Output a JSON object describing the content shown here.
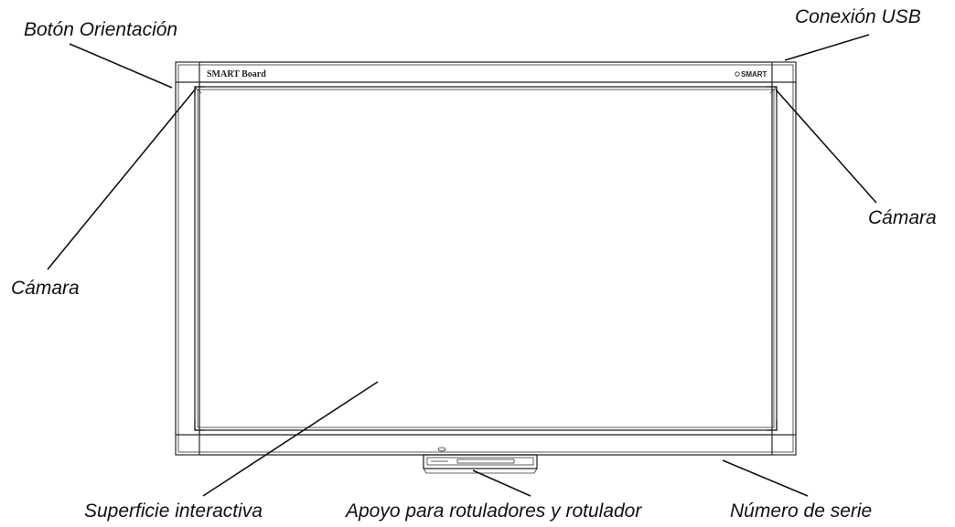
{
  "diagram": {
    "brand_left": "SMART Board",
    "brand_right": "SMART",
    "labels": {
      "orientation_button": "Botón Orientación",
      "usb_connection": "Conexión USB",
      "camera_left": "Cámara",
      "camera_right": "Cámara",
      "interactive_surface": "Superficie interactiva",
      "pen_tray": "Apoyo para rotuladores y rotulador",
      "serial_number": "Número de serie"
    }
  },
  "colors": {
    "line": "#1a1a1a",
    "board_fill": "#ffffff",
    "text": "#111111"
  }
}
